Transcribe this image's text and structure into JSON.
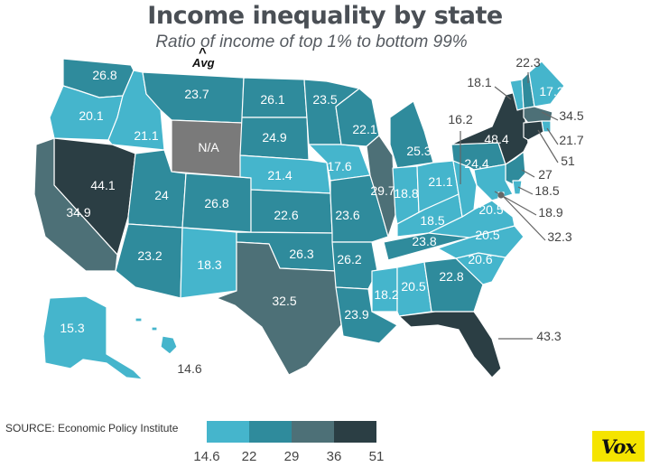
{
  "title": "Income inequality by state",
  "subtitle": "Ratio of income of top 1% to bottom 99%",
  "avg_marker": "Avg",
  "source": "SOURCE: Economic Policy Institute",
  "logo_text": "Vox",
  "colors": {
    "c1": "#45b5cc",
    "c2": "#2f8b9c",
    "c3": "#4d7077",
    "c4": "#2b3e44",
    "na": "#7a7a7a"
  },
  "legend": {
    "bins": [
      {
        "color": "#45b5cc"
      },
      {
        "color": "#2f8b9c"
      },
      {
        "color": "#4d7077"
      },
      {
        "color": "#2b3e44"
      }
    ],
    "ticks": [
      "14.6",
      "22",
      "29",
      "36",
      "51"
    ]
  },
  "states": [
    {
      "id": "WA",
      "value": "26.8"
    },
    {
      "id": "OR",
      "value": "20.1"
    },
    {
      "id": "ID",
      "value": "21.1"
    },
    {
      "id": "MT",
      "value": "23.7"
    },
    {
      "id": "WY",
      "value": "N/A"
    },
    {
      "id": "ND",
      "value": "26.1"
    },
    {
      "id": "SD",
      "value": "24.9"
    },
    {
      "id": "MN",
      "value": "23.5"
    },
    {
      "id": "NV",
      "value": "44.1"
    },
    {
      "id": "CA",
      "value": "34.9"
    },
    {
      "id": "UT",
      "value": "24"
    },
    {
      "id": "CO",
      "value": "26.8"
    },
    {
      "id": "AZ",
      "value": "23.2"
    },
    {
      "id": "NM",
      "value": "18.3"
    },
    {
      "id": "NE",
      "value": "21.4"
    },
    {
      "id": "KS",
      "value": "22.6"
    },
    {
      "id": "OK",
      "value": "26.3"
    },
    {
      "id": "TX",
      "value": "32.5"
    },
    {
      "id": "IA",
      "value": "17.6"
    },
    {
      "id": "MO",
      "value": "23.6"
    },
    {
      "id": "AR",
      "value": "26.2"
    },
    {
      "id": "LA",
      "value": "23.9"
    },
    {
      "id": "WI",
      "value": "22.1"
    },
    {
      "id": "IL",
      "value": "29.7"
    },
    {
      "id": "MI",
      "value": "25.3"
    },
    {
      "id": "IN",
      "value": "18.8"
    },
    {
      "id": "OH",
      "value": "21.1"
    },
    {
      "id": "KY",
      "value": "18.5"
    },
    {
      "id": "TN",
      "value": "23.8"
    },
    {
      "id": "MS",
      "value": "18.2"
    },
    {
      "id": "AL",
      "value": "20.5"
    },
    {
      "id": "GA",
      "value": "22.8"
    },
    {
      "id": "FL",
      "value": "43.3"
    },
    {
      "id": "SC",
      "value": "20.6"
    },
    {
      "id": "NC",
      "value": "20.5"
    },
    {
      "id": "VA",
      "value": "20.5"
    },
    {
      "id": "WV",
      "value": "16.2"
    },
    {
      "id": "PA",
      "value": "24.4"
    },
    {
      "id": "NY",
      "value": "48.4"
    },
    {
      "id": "VT",
      "value": "18.1"
    },
    {
      "id": "NH",
      "value": "22.3"
    },
    {
      "id": "ME",
      "value": "17.2"
    },
    {
      "id": "MA",
      "value": "34.5"
    },
    {
      "id": "RI",
      "value": "21.7"
    },
    {
      "id": "CT",
      "value": "51"
    },
    {
      "id": "NJ",
      "value": "27"
    },
    {
      "id": "DE",
      "value": "18.5"
    },
    {
      "id": "MD",
      "value": "18.9"
    },
    {
      "id": "DC",
      "value": "32.3"
    },
    {
      "id": "AK",
      "value": "15.3"
    },
    {
      "id": "HI",
      "value": "14.6"
    }
  ]
}
